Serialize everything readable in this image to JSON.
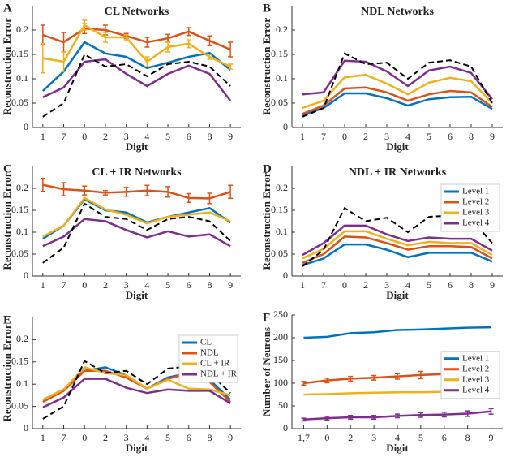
{
  "chart_data": [
    {
      "type": "line",
      "panel": "A",
      "title": "CL Networks",
      "x_label": "Digit",
      "y_label": "Reconstruction Error",
      "categories": [
        "1",
        "7",
        "0",
        "2",
        "3",
        "4",
        "5",
        "6",
        "8",
        "9"
      ],
      "ylim": [
        0,
        0.25
      ],
      "yticks": [
        0,
        0.05,
        0.1,
        0.15,
        0.2
      ],
      "series": [
        {
          "color": "#0072bd",
          "values": [
            0.075,
            0.115,
            0.175,
            0.152,
            0.145,
            0.122,
            0.133,
            0.145,
            0.153,
            0.118
          ]
        },
        {
          "color": "#d95319",
          "values": [
            0.19,
            0.175,
            0.203,
            0.2,
            0.188,
            0.175,
            0.183,
            0.197,
            0.178,
            0.16
          ],
          "errors": [
            0.02,
            0.02,
            0.01,
            0.01,
            0.005,
            0.01,
            0.008,
            0.008,
            0.01,
            0.015
          ]
        },
        {
          "color": "#edb120",
          "values": [
            0.142,
            0.135,
            0.21,
            0.185,
            0.185,
            0.135,
            0.165,
            0.172,
            0.145,
            0.125
          ],
          "errors": [
            0.03,
            0.02,
            0.01,
            0.01,
            0.005,
            0.01,
            0.01,
            0.008,
            0.005,
            0.005
          ]
        },
        {
          "color": "#7e2f8e",
          "values": [
            0.062,
            0.082,
            0.135,
            0.14,
            0.11,
            0.085,
            0.11,
            0.127,
            0.11,
            0.055
          ]
        },
        {
          "color": "#000000",
          "dash": true,
          "values": [
            0.022,
            0.05,
            0.15,
            0.125,
            0.13,
            0.105,
            0.13,
            0.135,
            0.125,
            0.085
          ]
        }
      ]
    },
    {
      "type": "line",
      "panel": "B",
      "title": "NDL Networks",
      "x_label": "Digit",
      "y_label": "Reconstruction Error",
      "categories": [
        "1",
        "7",
        "0",
        "2",
        "3",
        "4",
        "5",
        "6",
        "8",
        "9"
      ],
      "ylim": [
        0,
        0.25
      ],
      "yticks": [
        0,
        0.05,
        0.1,
        0.15,
        0.2
      ],
      "series": [
        {
          "color": "#0072bd",
          "values": [
            0.025,
            0.04,
            0.07,
            0.07,
            0.06,
            0.045,
            0.058,
            0.062,
            0.063,
            0.038
          ]
        },
        {
          "color": "#d95319",
          "values": [
            0.028,
            0.045,
            0.08,
            0.082,
            0.072,
            0.055,
            0.068,
            0.075,
            0.072,
            0.042
          ]
        },
        {
          "color": "#edb120",
          "values": [
            0.04,
            0.055,
            0.103,
            0.108,
            0.09,
            0.068,
            0.092,
            0.102,
            0.095,
            0.05
          ]
        },
        {
          "color": "#7e2f8e",
          "values": [
            0.068,
            0.072,
            0.137,
            0.135,
            0.115,
            0.085,
            0.117,
            0.125,
            0.112,
            0.058
          ]
        },
        {
          "color": "#000000",
          "dash": true,
          "values": [
            0.022,
            0.04,
            0.152,
            0.13,
            0.133,
            0.1,
            0.133,
            0.138,
            0.125,
            0.05
          ]
        }
      ]
    },
    {
      "type": "line",
      "panel": "C",
      "title": "CL + IR Networks",
      "x_label": "Digit",
      "y_label": "Reconstruction Error",
      "categories": [
        "1",
        "7",
        "0",
        "2",
        "3",
        "4",
        "5",
        "6",
        "8",
        "9"
      ],
      "ylim": [
        0,
        0.25
      ],
      "yticks": [
        0,
        0.05,
        0.1,
        0.15,
        0.2
      ],
      "series": [
        {
          "color": "#0072bd",
          "values": [
            0.085,
            0.115,
            0.175,
            0.15,
            0.145,
            0.122,
            0.135,
            0.145,
            0.155,
            0.122
          ]
        },
        {
          "color": "#d95319",
          "values": [
            0.208,
            0.198,
            0.195,
            0.19,
            0.192,
            0.195,
            0.192,
            0.178,
            0.177,
            0.192
          ],
          "errors": [
            0.015,
            0.015,
            0.01,
            0.005,
            0.01,
            0.012,
            0.012,
            0.01,
            0.012,
            0.015
          ]
        },
        {
          "color": "#edb120",
          "values": [
            0.09,
            0.115,
            0.178,
            0.152,
            0.14,
            0.12,
            0.135,
            0.14,
            0.145,
            0.125
          ]
        },
        {
          "color": "#7e2f8e",
          "values": [
            0.068,
            0.09,
            0.13,
            0.125,
            0.105,
            0.088,
            0.102,
            0.09,
            0.095,
            0.068
          ]
        },
        {
          "color": "#000000",
          "dash": true,
          "values": [
            0.03,
            0.065,
            0.165,
            0.135,
            0.13,
            0.105,
            0.13,
            0.135,
            0.125,
            0.08
          ]
        }
      ]
    },
    {
      "type": "line",
      "panel": "D",
      "title": "NDL + IR Networks",
      "x_label": "Digit",
      "y_label": "Reconstruction Error",
      "legend": "upper right",
      "categories": [
        "1",
        "7",
        "0",
        "2",
        "3",
        "4",
        "5",
        "6",
        "8",
        "9"
      ],
      "ylim": [
        0,
        0.25
      ],
      "yticks": [
        0,
        0.05,
        0.1,
        0.15,
        0.2
      ],
      "series": [
        {
          "name": "Level 1",
          "color": "#0072bd",
          "values": [
            0.025,
            0.04,
            0.072,
            0.072,
            0.06,
            0.043,
            0.053,
            0.053,
            0.053,
            0.033
          ]
        },
        {
          "name": "Level 2",
          "color": "#d95319",
          "values": [
            0.03,
            0.05,
            0.09,
            0.088,
            0.075,
            0.06,
            0.068,
            0.068,
            0.066,
            0.04
          ]
        },
        {
          "name": "Level 3",
          "color": "#edb120",
          "values": [
            0.04,
            0.062,
            0.102,
            0.102,
            0.085,
            0.07,
            0.078,
            0.075,
            0.075,
            0.048
          ]
        },
        {
          "name": "Level 4",
          "color": "#7e2f8e",
          "values": [
            0.048,
            0.075,
            0.115,
            0.115,
            0.095,
            0.08,
            0.088,
            0.085,
            0.085,
            0.058
          ]
        },
        {
          "color": "#000000",
          "dash": true,
          "values": [
            0.022,
            0.06,
            0.155,
            0.125,
            0.133,
            0.1,
            0.135,
            0.138,
            0.13,
            0.075
          ]
        }
      ]
    },
    {
      "type": "line",
      "panel": "E",
      "x_label": "Digit",
      "y_label": "Reconstruction Error",
      "legend": "upper right",
      "categories": [
        "1",
        "7",
        "0",
        "2",
        "3",
        "4",
        "5",
        "6",
        "8",
        "9"
      ],
      "ylim": [
        0,
        0.25
      ],
      "yticks": [
        0,
        0.05,
        0.1,
        0.15,
        0.2
      ],
      "series": [
        {
          "name": "CL",
          "color": "#0072bd",
          "values": [
            0.065,
            0.088,
            0.13,
            0.138,
            0.12,
            0.09,
            0.115,
            0.125,
            0.11,
            0.065
          ]
        },
        {
          "name": "NDL",
          "color": "#d95319",
          "values": [
            0.06,
            0.085,
            0.13,
            0.13,
            0.115,
            0.09,
            0.112,
            0.125,
            0.105,
            0.06
          ]
        },
        {
          "name": "CL + IR",
          "color": "#edb120",
          "values": [
            0.065,
            0.088,
            0.138,
            0.125,
            0.12,
            0.09,
            0.11,
            0.09,
            0.088,
            0.075
          ]
        },
        {
          "name": "NDL + IR",
          "color": "#7e2f8e",
          "values": [
            0.048,
            0.07,
            0.112,
            0.112,
            0.092,
            0.08,
            0.088,
            0.085,
            0.085,
            0.057
          ]
        },
        {
          "color": "#000000",
          "dash": true,
          "values": [
            0.022,
            0.05,
            0.152,
            0.125,
            0.13,
            0.1,
            0.135,
            0.14,
            0.125,
            0.08
          ]
        }
      ]
    },
    {
      "type": "line",
      "panel": "F",
      "x_label": "Digit",
      "y_label": "Number of Neurons",
      "legend": "center right",
      "categories": [
        "1,7",
        "0",
        "2",
        "3",
        "4",
        "5",
        "6",
        "8",
        "9"
      ],
      "ylim": [
        0,
        250
      ],
      "yticks": [
        0,
        50,
        100,
        150,
        200,
        250
      ],
      "series": [
        {
          "name": "Level 1",
          "color": "#0072bd",
          "values": [
            200,
            202,
            210,
            212,
            217,
            218,
            220,
            222,
            223
          ]
        },
        {
          "name": "Level 2",
          "color": "#d95319",
          "values": [
            100,
            106,
            110,
            112,
            115,
            118,
            120,
            127,
            133
          ],
          "errors": [
            4,
            5,
            5,
            5,
            6,
            8,
            10,
            10,
            10
          ]
        },
        {
          "name": "Level 3",
          "color": "#edb120",
          "values": [
            75,
            76,
            78,
            79,
            80,
            80,
            81,
            82,
            83
          ]
        },
        {
          "name": "Level 4",
          "color": "#7e2f8e",
          "values": [
            20,
            23,
            25,
            25,
            28,
            30,
            31,
            33,
            38
          ],
          "errors": [
            3,
            4,
            4,
            4,
            4,
            5,
            5,
            6,
            6
          ]
        }
      ]
    }
  ]
}
